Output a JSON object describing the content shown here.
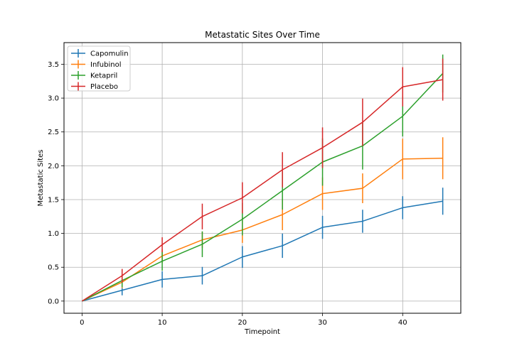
{
  "chart_data": {
    "type": "line",
    "title": "Metastatic Sites Over Time",
    "xlabel": "Timepoint",
    "ylabel": "Metastatic Sites",
    "xlim": [
      -2.25,
      47.25
    ],
    "ylim": [
      -0.18,
      3.82
    ],
    "xticks": [
      0,
      10,
      20,
      30,
      40
    ],
    "yticks": [
      0.0,
      0.5,
      1.0,
      1.5,
      2.0,
      2.5,
      3.0,
      3.5
    ],
    "ytick_labels": [
      "0.0",
      "0.5",
      "1.0",
      "1.5",
      "2.0",
      "2.5",
      "3.0",
      "3.5"
    ],
    "grid": true,
    "legend_position": "top-left",
    "x": [
      0,
      5,
      10,
      15,
      20,
      25,
      30,
      35,
      40,
      45
    ],
    "series": [
      {
        "name": "Capomulin",
        "color": "#1f77b4",
        "values": [
          0.0,
          0.16,
          0.32,
          0.375,
          0.652,
          0.818,
          1.09,
          1.18,
          1.38,
          1.476
        ],
        "errors": [
          0.0,
          0.075,
          0.12,
          0.13,
          0.16,
          0.18,
          0.17,
          0.17,
          0.17,
          0.2
        ]
      },
      {
        "name": "Infubinol",
        "color": "#ff7f0e",
        "values": [
          0.0,
          0.28,
          0.667,
          0.905,
          1.05,
          1.278,
          1.588,
          1.667,
          2.1,
          2.111
        ],
        "errors": [
          0.0,
          0.09,
          0.1,
          0.12,
          0.19,
          0.23,
          0.24,
          0.22,
          0.3,
          0.31
        ]
      },
      {
        "name": "Ketapril",
        "color": "#2ca02c",
        "values": [
          0.0,
          0.304,
          0.59,
          0.84,
          1.21,
          1.632,
          2.055,
          2.294,
          2.733,
          3.364
        ],
        "errors": [
          0.0,
          0.1,
          0.14,
          0.19,
          0.24,
          0.28,
          0.35,
          0.35,
          0.3,
          0.28
        ]
      },
      {
        "name": "Placebo",
        "color": "#d62728",
        "values": [
          0.0,
          0.375,
          0.833,
          1.25,
          1.526,
          1.941,
          2.267,
          2.643,
          3.167,
          3.273
        ],
        "errors": [
          0.0,
          0.1,
          0.11,
          0.19,
          0.23,
          0.26,
          0.3,
          0.35,
          0.29,
          0.31
        ]
      }
    ]
  },
  "colors": {
    "grid": "#b0b0b0",
    "axis": "#000000"
  }
}
